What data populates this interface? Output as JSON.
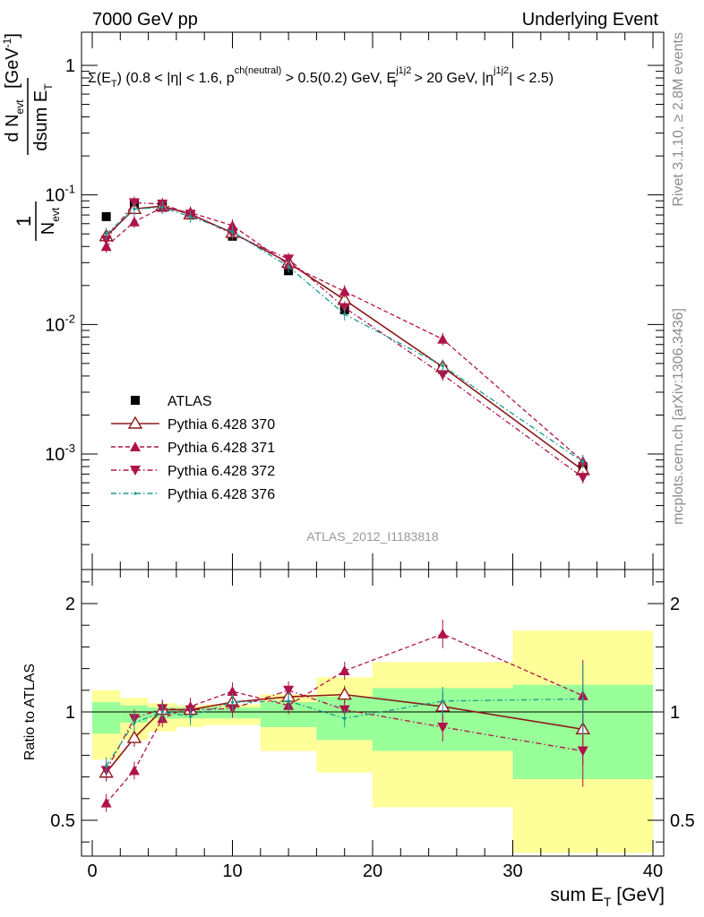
{
  "header": {
    "left": "7000 GeV pp",
    "right": "Underlying Event"
  },
  "side_labels": {
    "rivet": "Rivet 3.1.10, ≥ 2.8M events",
    "mcplots": "mcplots.cern.ch [arXiv:1306.3436]"
  },
  "watermark": "ATLAS_2012_I1183818",
  "colors": {
    "atlas": "#000000",
    "p370": "#8b1a1a",
    "p371": "#b0124a",
    "p372": "#b0124a",
    "p376": "#1a9a8f",
    "band_inner": "#99ff99",
    "band_outer": "#ffff99"
  },
  "chart_data": [
    {
      "type": "scatter",
      "panel": "main",
      "title": "Σ(E_T) (0.8 < |η| < 1.6, p^ch(neutral) > 0.5(0.2) GeV, E_T^j1j2 > 20 GeV, |η^j1j2| < 2.5)",
      "ylabel": "1/N_evt dN_evt/dsum E_T [GeV^-1]",
      "yscale": "log",
      "xlim": [
        0,
        40
      ],
      "ylim": [
        0.00015,
        1.7
      ],
      "y_ticks": [
        {
          "value": 1,
          "label": "1"
        },
        {
          "value": 0.1,
          "label": "10^-1"
        },
        {
          "value": 0.01,
          "label": "10^-2"
        },
        {
          "value": 0.001,
          "label": "10^-3"
        }
      ],
      "legend_position": "left",
      "x": [
        1,
        3,
        5,
        7,
        10,
        14,
        18,
        25,
        35
      ],
      "series": [
        {
          "name": "ATLAS",
          "marker": "square",
          "line": "none",
          "values": [
            0.068,
            0.085,
            0.082,
            0.07,
            0.048,
            0.026,
            0.013,
            0.0045,
            0.0008
          ]
        },
        {
          "name": "Pythia 6.428 370",
          "marker": "open-triangle-up",
          "line": "solid",
          "values": [
            0.048,
            0.078,
            0.082,
            0.071,
            0.051,
            0.03,
            0.0155,
            0.0047,
            0.00075
          ]
        },
        {
          "name": "Pythia 6.428 371",
          "marker": "triangle-up",
          "line": "dashed",
          "values": [
            0.04,
            0.062,
            0.08,
            0.073,
            0.058,
            0.029,
            0.018,
            0.0077,
            0.00088
          ]
        },
        {
          "name": "Pythia 6.428 372",
          "marker": "triangle-down",
          "line": "dashdot",
          "values": [
            0.045,
            0.087,
            0.085,
            0.071,
            0.05,
            0.032,
            0.0135,
            0.0041,
            0.00066
          ]
        },
        {
          "name": "Pythia 6.428 376",
          "marker": "dot",
          "line": "dashdot",
          "values": [
            0.05,
            0.078,
            0.08,
            0.068,
            0.052,
            0.028,
            0.012,
            0.0048,
            0.00087
          ]
        }
      ]
    },
    {
      "type": "line",
      "panel": "ratio",
      "xlabel": "sum E_T [GeV]",
      "ylabel": "Ratio to ATLAS",
      "xlim": [
        0,
        40
      ],
      "ylim": [
        0.35,
        2.3
      ],
      "x_ticks": [
        0,
        10,
        20,
        30,
        40
      ],
      "y_ticks": [
        0.5,
        1,
        2
      ],
      "reference": 1,
      "bands": {
        "x_edges": [
          0,
          2,
          4,
          6,
          8,
          12,
          16,
          20,
          30,
          40
        ],
        "inner_low": [
          0.9,
          0.95,
          0.97,
          0.97,
          0.97,
          0.93,
          0.87,
          0.82,
          0.69
        ],
        "inner_high": [
          1.09,
          1.06,
          1.04,
          1.04,
          1.04,
          1.09,
          1.14,
          1.22,
          1.25
        ],
        "outer_low": [
          0.78,
          0.87,
          0.91,
          0.93,
          0.94,
          0.82,
          0.72,
          0.56,
          0.32
        ],
        "outer_high": [
          1.2,
          1.13,
          1.08,
          1.06,
          1.07,
          1.16,
          1.32,
          1.46,
          1.75
        ]
      },
      "x": [
        1,
        3,
        5,
        7,
        10,
        14,
        18,
        25,
        35
      ],
      "series": [
        {
          "name": "Pythia 6.428 370",
          "values": [
            0.72,
            0.88,
            1.02,
            1.02,
            1.09,
            1.14,
            1.16,
            1.05,
            0.92
          ]
        },
        {
          "name": "Pythia 6.428 371",
          "values": [
            0.58,
            0.73,
            0.97,
            1.05,
            1.19,
            1.06,
            1.38,
            1.72,
            1.15
          ]
        },
        {
          "name": "Pythia 6.428 372",
          "values": [
            0.73,
            0.97,
            1.03,
            1.02,
            1.03,
            1.2,
            1.02,
            0.93,
            0.82
          ]
        },
        {
          "name": "Pythia 6.428 376",
          "values": [
            0.75,
            0.95,
            1.0,
            0.98,
            1.09,
            1.1,
            0.97,
            1.1,
            1.12
          ]
        }
      ]
    }
  ]
}
